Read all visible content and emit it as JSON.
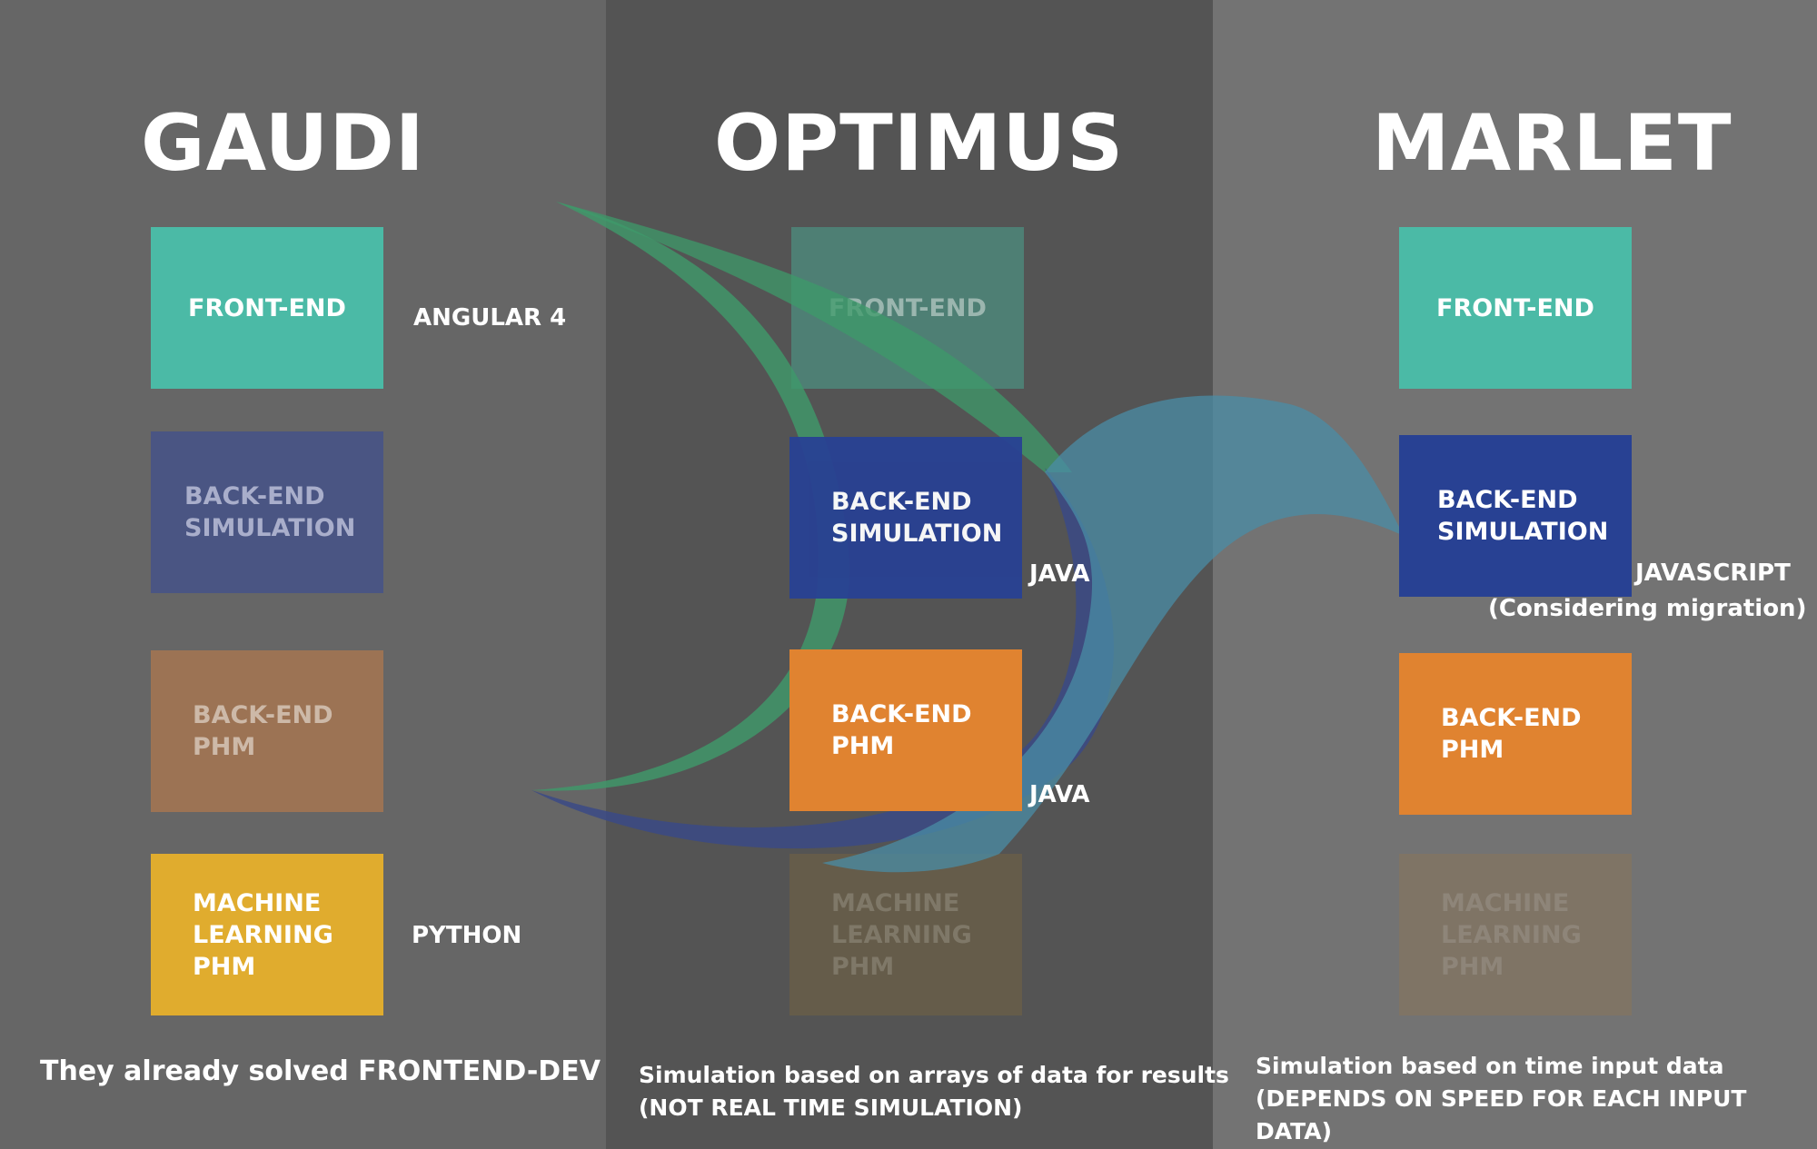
{
  "columns": [
    {
      "title": "GAUDI",
      "boxes": [
        {
          "label": "FRONT-END",
          "color": "#4BBAA6",
          "active": true
        },
        {
          "label": "BACK-END\nSIMULATION",
          "color": "#4A5583",
          "active": false
        },
        {
          "label": "BACK-END\nPHM",
          "color": "#9C7354",
          "active": false
        },
        {
          "label": "MACHINE\nLEARNING\nPHM",
          "color": "#E0AC2E",
          "active": true
        }
      ],
      "tech": {
        "front_end": "ANGULAR 4",
        "ml": "PYTHON"
      },
      "note": "They already solved FRONTEND-DEV"
    },
    {
      "title": "OPTIMUS",
      "boxes": [
        {
          "label": "FRONT-END",
          "color": "#4E7F74",
          "active": false
        },
        {
          "label": "BACK-END\nSIMULATION",
          "color": "#284193",
          "active": true
        },
        {
          "label": "BACK-END\nPHM",
          "color": "#E08330",
          "active": true
        },
        {
          "label": "MACHINE\nLEARNING\nPHM",
          "color": "#655C4A",
          "active": false
        }
      ],
      "tech": {
        "back_end_sim": "JAVA",
        "back_end_phm": "JAVA"
      },
      "note": "Simulation based on arrays of data for results\n(NOT REAL TIME SIMULATION)"
    },
    {
      "title": "MARLET",
      "boxes": [
        {
          "label": "FRONT-END",
          "color": "#4BBAA6",
          "active": true
        },
        {
          "label": "BACK-END\nSIMULATION",
          "color": "#284193",
          "active": true
        },
        {
          "label": "BACK-END\nPHM",
          "color": "#E08330",
          "active": true
        },
        {
          "label": "MACHINE\nLEARNING\nPHM",
          "color": "#7F7465",
          "active": false
        }
      ],
      "tech": {
        "back_end_sim": "JAVASCRIPT",
        "back_end_sim_note": "(Considering migration)"
      },
      "note": "Simulation based on time  input data\n(DEPENDS ON SPEED FOR EACH INPUT DATA)"
    }
  ],
  "colors": {
    "col_gaudi": "#666666",
    "col_optimus": "#545454",
    "col_marlet": "#737373",
    "flow_green": "#3E9A6A",
    "flow_navy": "#3B4A86",
    "flow_teal": "#4A8CA6",
    "inactive_text": "#B5B5C3"
  }
}
